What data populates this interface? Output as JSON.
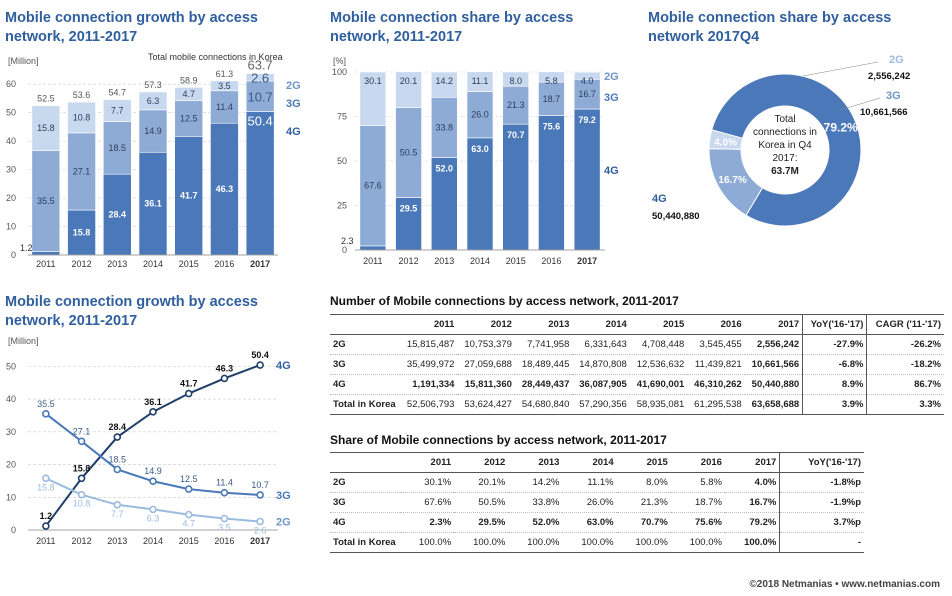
{
  "titles": {
    "growth_bar": "Mobile connection growth by access network, 2011-2017",
    "share_bar": "Mobile connection share by access network, 2011-2017",
    "pie": "Mobile connection share by access network 2017Q4",
    "growth_line": "Mobile connection growth by access network, 2011-2017",
    "table1": "Number of Mobile connections by access network, 2011-2017",
    "table2": "Share of Mobile connections by access network, 2011-2017"
  },
  "footer": "©2018 Netmanias • www.netmanias.com",
  "colors": {
    "g4": "#4a78b8",
    "g3": "#8eabd6",
    "g2": "#c8d8ee",
    "dark": "#1f3e6a",
    "mid": "#4a78b8",
    "light": "#9bbbe0"
  },
  "chart_data": [
    {
      "type": "bar",
      "stacked": true,
      "title": "Mobile connection growth by access network, 2011-2017",
      "ylabel": "[Million]",
      "annotation": "Total mobile connections in Korea",
      "ylim": [
        0,
        65
      ],
      "yticks": [
        "0",
        "10",
        "20",
        "30",
        "40",
        "50",
        "60"
      ],
      "categories": [
        "2011",
        "2012",
        "2013",
        "2014",
        "2015",
        "2016",
        "2017"
      ],
      "series": [
        {
          "name": "4G",
          "values": [
            1.2,
            15.8,
            28.4,
            36.1,
            41.7,
            46.3,
            50.4
          ]
        },
        {
          "name": "3G",
          "values": [
            35.5,
            27.1,
            18.5,
            14.9,
            12.5,
            11.4,
            10.7
          ]
        },
        {
          "name": "2G",
          "values": [
            15.8,
            10.8,
            7.7,
            6.3,
            4.7,
            3.5,
            2.6
          ]
        }
      ],
      "totals": [
        52.5,
        53.6,
        54.7,
        57.3,
        58.9,
        61.3,
        63.7
      ]
    },
    {
      "type": "bar",
      "stacked": true,
      "title": "Mobile connection share by access network, 2011-2017",
      "ylabel": "[%]",
      "ylim": [
        0,
        100
      ],
      "yticks": [
        "0",
        "25",
        "50",
        "75",
        "100"
      ],
      "categories": [
        "2011",
        "2012",
        "2013",
        "2014",
        "2015",
        "2016",
        "2017"
      ],
      "series": [
        {
          "name": "4G",
          "values": [
            2.3,
            29.5,
            52.0,
            63.0,
            70.7,
            75.6,
            79.2
          ]
        },
        {
          "name": "3G",
          "values": [
            67.6,
            50.5,
            33.8,
            26.0,
            21.3,
            18.7,
            16.7
          ]
        },
        {
          "name": "2G",
          "values": [
            30.1,
            20.1,
            14.2,
            11.1,
            8.0,
            5.8,
            4.0
          ]
        }
      ]
    },
    {
      "type": "pie",
      "title": "Mobile connection share by access network 2017Q4",
      "center_text": [
        "Total",
        "connections in",
        "Korea in Q4",
        "2017:",
        "63.7M"
      ],
      "slices": [
        {
          "name": "4G",
          "value": 79.2,
          "label": "79.2%",
          "count": "50,440,880"
        },
        {
          "name": "3G",
          "value": 16.7,
          "label": "16.7%",
          "count": "10,661,566"
        },
        {
          "name": "2G",
          "value": 4.0,
          "label": "4.0%",
          "count": "2,556,242"
        }
      ]
    },
    {
      "type": "line",
      "title": "Mobile connection growth by access network, 2011-2017",
      "ylabel": "[Million]",
      "ylim": [
        0,
        55
      ],
      "yticks": [
        "0",
        "10",
        "20",
        "30",
        "40",
        "50"
      ],
      "categories": [
        "2011",
        "2012",
        "2013",
        "2014",
        "2015",
        "2016",
        "2017"
      ],
      "series": [
        {
          "name": "4G",
          "values": [
            1.2,
            15.8,
            28.4,
            36.1,
            41.7,
            46.3,
            50.4
          ]
        },
        {
          "name": "3G",
          "values": [
            35.5,
            27.1,
            18.5,
            14.9,
            12.5,
            11.4,
            10.7
          ]
        },
        {
          "name": "2G",
          "values": [
            15.8,
            10.8,
            7.7,
            6.3,
            4.7,
            3.5,
            2.6
          ]
        }
      ]
    },
    {
      "type": "table",
      "title": "Number of Mobile connections by access network, 2011-2017",
      "columns": [
        "",
        "2011",
        "2012",
        "2013",
        "2014",
        "2015",
        "2016",
        "2017",
        "YoY('16-'17)",
        "CAGR ('11-'17)"
      ],
      "rows": [
        [
          "2G",
          "15,815,487",
          "10,753,379",
          "7,741,958",
          "6,331,643",
          "4,708,448",
          "3,545,455",
          "2,556,242",
          "-27.9%",
          "-26.2%"
        ],
        [
          "3G",
          "35,499,972",
          "27,059,688",
          "18,489,445",
          "14,870,808",
          "12,536,632",
          "11,439,821",
          "10,661,566",
          "-6.8%",
          "-18.2%"
        ],
        [
          "4G",
          "1,191,334",
          "15,811,360",
          "28,449,437",
          "36,087,905",
          "41,690,001",
          "46,310,262",
          "50,440,880",
          "8.9%",
          "86.7%"
        ],
        [
          "Total in Korea",
          "52,506,793",
          "53,624,427",
          "54,680,840",
          "57,290,356",
          "58,935,081",
          "61,295,538",
          "63,658,688",
          "3.9%",
          "3.3%"
        ]
      ]
    },
    {
      "type": "table",
      "title": "Share of Mobile connections by access network, 2011-2017",
      "columns": [
        "",
        "2011",
        "2012",
        "2013",
        "2014",
        "2015",
        "2016",
        "2017",
        "YoY('16-'17)"
      ],
      "rows": [
        [
          "2G",
          "30.1%",
          "20.1%",
          "14.2%",
          "11.1%",
          "8.0%",
          "5.8%",
          "4.0%",
          "-1.8%p"
        ],
        [
          "3G",
          "67.6%",
          "50.5%",
          "33.8%",
          "26.0%",
          "21.3%",
          "18.7%",
          "16.7%",
          "-1.9%p"
        ],
        [
          "4G",
          "2.3%",
          "29.5%",
          "52.0%",
          "63.0%",
          "70.7%",
          "75.6%",
          "79.2%",
          "3.7%p"
        ],
        [
          "Total in Korea",
          "100.0%",
          "100.0%",
          "100.0%",
          "100.0%",
          "100.0%",
          "100.0%",
          "100.0%",
          "-"
        ]
      ]
    }
  ]
}
